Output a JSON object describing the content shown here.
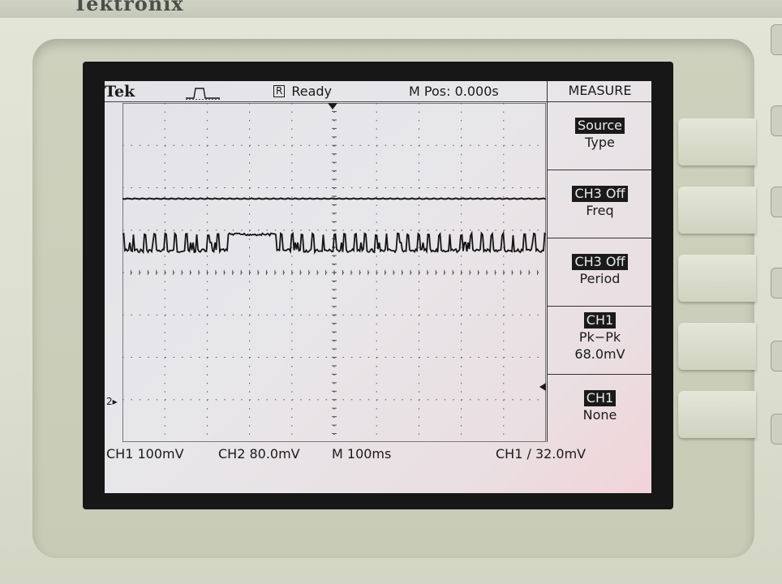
{
  "brand": {
    "text": "Tektronix"
  },
  "screen": {
    "logo": "Tek",
    "trigger_icon": "pulse-icon",
    "status_box": "R",
    "status_text": "Ready",
    "mpos": "M Pos: 0.000s",
    "menu": {
      "title": "MEASURE",
      "items": [
        {
          "highlight": "Source",
          "line2": "Type",
          "line3": ""
        },
        {
          "highlight": "CH3 Off",
          "line2": "Freq",
          "line3": ""
        },
        {
          "highlight": "CH3 Off",
          "line2": "Period",
          "line3": ""
        },
        {
          "highlight": "CH1",
          "line2": "Pk−Pk",
          "line3": "68.0mV"
        },
        {
          "highlight": "CH1",
          "line2": "None",
          "line3": ""
        }
      ]
    },
    "bottom": {
      "ch1": "CH1  100mV",
      "ch2": "CH2  80.0mV",
      "timebase": "M 100ms",
      "trigger": "CH1 ∕ 32.0mV"
    },
    "ch2_marker": "2▸"
  },
  "colors": {
    "trace": "#141414",
    "grid": "#555555",
    "highlight_bg": "#1a1a1a"
  }
}
